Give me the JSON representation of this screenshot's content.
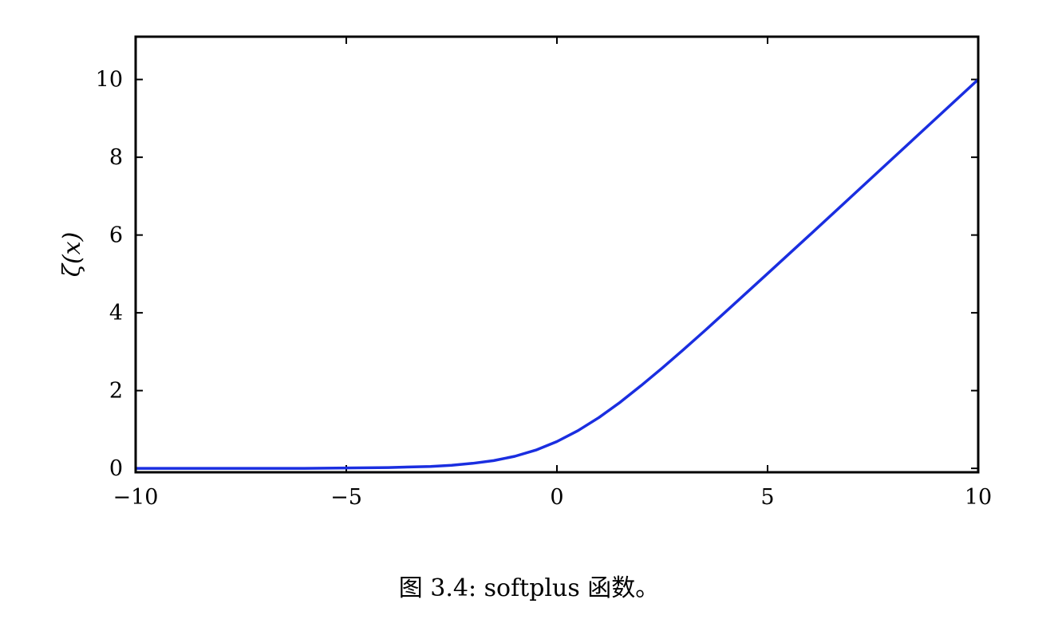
{
  "caption": "图 3.4: softplus 函数。",
  "chart_data": {
    "type": "line",
    "title": "",
    "xlabel": "",
    "ylabel": "ζ(x)",
    "xlim": [
      -10,
      10
    ],
    "ylim": [
      -0.1,
      11.1
    ],
    "xticks": [
      -10,
      -5,
      0,
      5,
      10
    ],
    "xtick_labels": [
      "−10",
      "−5",
      "0",
      "5",
      "10"
    ],
    "yticks": [
      0,
      2,
      4,
      6,
      8,
      10
    ],
    "ytick_labels": [
      "0",
      "2",
      "4",
      "6",
      "8",
      "10"
    ],
    "grid": false,
    "legend": "none",
    "series": [
      {
        "color": "#1a2ee0",
        "x": [
          -10,
          -9,
          -8,
          -7,
          -6,
          -5,
          -4,
          -3,
          -2.5,
          -2,
          -1.5,
          -1,
          -0.5,
          0,
          0.5,
          1,
          1.5,
          2,
          2.5,
          3,
          3.5,
          4,
          5,
          6,
          7,
          8,
          9,
          10
        ],
        "y": [
          0.0,
          0.0,
          0.0,
          0.0,
          0.0,
          0.01,
          0.02,
          0.05,
          0.08,
          0.13,
          0.2,
          0.31,
          0.47,
          0.69,
          0.97,
          1.31,
          1.7,
          2.13,
          2.58,
          3.05,
          3.53,
          4.02,
          5.01,
          6.0,
          7.0,
          8.0,
          9.0,
          10.0
        ]
      }
    ]
  }
}
